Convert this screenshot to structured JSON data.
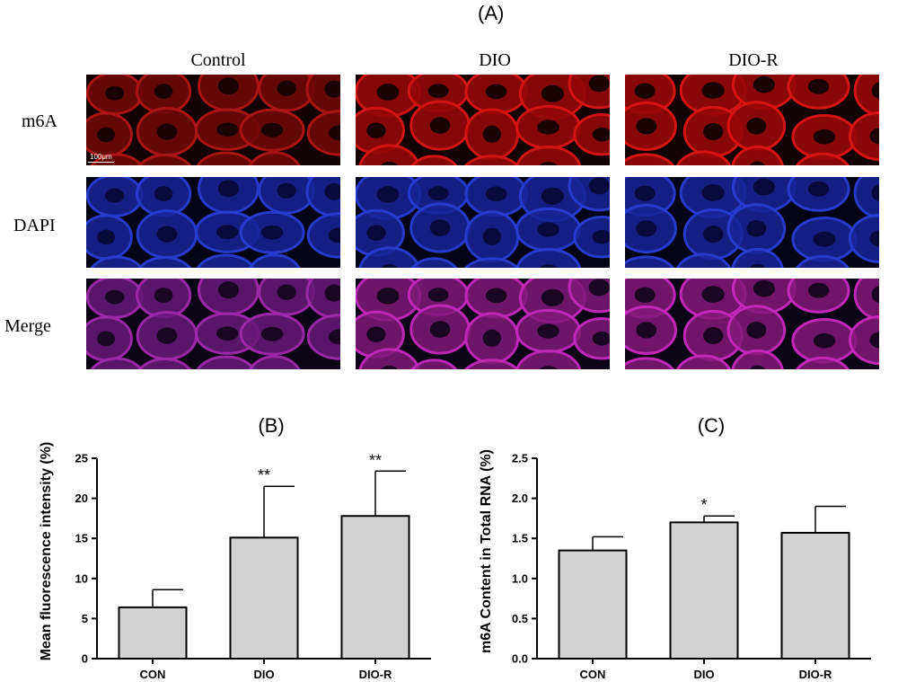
{
  "panel_a": {
    "letter": "(A)",
    "columns": [
      "Control",
      "DIO",
      "DIO-R"
    ],
    "rows": [
      "m6A",
      "DAPI",
      "Merge"
    ],
    "scale_bar": "100μm"
  },
  "chart_data": [
    {
      "type": "bar",
      "panel": "(B)",
      "title": "",
      "categories": [
        "CON",
        "DIO",
        "DIO-R"
      ],
      "values": [
        6.4,
        15.1,
        17.8
      ],
      "errors": [
        2.2,
        6.4,
        5.6
      ],
      "significance": [
        "",
        "**",
        "**"
      ],
      "xlabel": "",
      "ylabel": "Mean fluorescence intensity (%)",
      "ylim": [
        0,
        25
      ],
      "yticks": [
        0,
        5,
        10,
        15,
        20,
        25
      ],
      "ytick_labels": [
        "0",
        "5",
        "10",
        "15",
        "20",
        "25"
      ],
      "bar_color": "#d3d3d3",
      "grid": false
    },
    {
      "type": "bar",
      "panel": "(C)",
      "title": "",
      "categories": [
        "CON",
        "DIO",
        "DIO-R"
      ],
      "values": [
        1.35,
        1.7,
        1.57
      ],
      "errors": [
        0.17,
        0.08,
        0.33
      ],
      "significance": [
        "",
        "*",
        ""
      ],
      "xlabel": "",
      "ylabel": "m6A Content in Total RNA (%)",
      "ylim": [
        0,
        2.5
      ],
      "yticks": [
        0,
        0.5,
        1.0,
        1.5,
        2.0,
        2.5
      ],
      "ytick_labels": [
        "0.0",
        "0.5",
        "1.0",
        "1.5",
        "2.0",
        "2.5"
      ],
      "bar_color": "#d3d3d3",
      "grid": false
    }
  ]
}
